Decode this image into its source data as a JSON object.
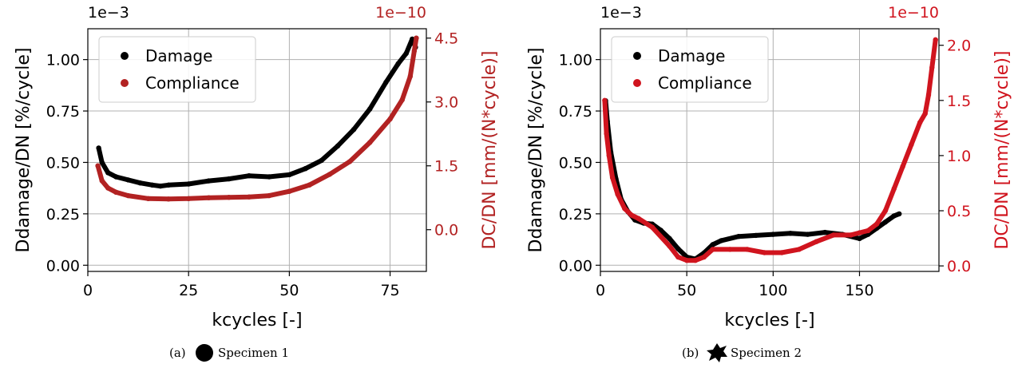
{
  "chart_data": [
    {
      "type": "line",
      "caption": {
        "prefix": "(a)",
        "label": "Specimen 1",
        "icon": "filled-circle-icon"
      },
      "xlabel": "kcycles [-]",
      "ylabel": "Ddamage/DN [%/cycle]",
      "y2label": "DC/DN [mm/(N*cycle)]",
      "xlim": [
        0,
        84
      ],
      "ylim": [
        -0.03,
        1.15
      ],
      "y2lim": [
        -0.98,
        4.72
      ],
      "x_ticks": [
        "0",
        "25",
        "50",
        "75"
      ],
      "x_tick_values": [
        0,
        25,
        50,
        75
      ],
      "y_ticks": [
        "0.00",
        "0.25",
        "0.50",
        "0.75",
        "1.00"
      ],
      "y_tick_values": [
        0,
        0.25,
        0.5,
        0.75,
        1.0
      ],
      "y2_ticks": [
        "0.0",
        "1.5",
        "3.0",
        "4.5"
      ],
      "y2_tick_values": [
        0,
        1.5,
        3.0,
        4.5
      ],
      "y_offset": "1e−3",
      "y2_offset": "1e−10",
      "grid": true,
      "legend": {
        "position": "top-left",
        "entries": [
          "Damage",
          "Compliance"
        ]
      },
      "series": [
        {
          "name": "Damage",
          "axis": "left",
          "color": "#000000",
          "x": [
            2.7,
            3.5,
            5,
            7,
            10,
            13,
            16,
            18,
            20,
            25,
            30,
            35,
            40,
            45,
            50,
            54,
            58,
            62,
            66,
            70,
            74,
            77,
            79,
            80.5,
            81.3
          ],
          "y": [
            0.57,
            0.5,
            0.45,
            0.43,
            0.415,
            0.4,
            0.39,
            0.385,
            0.39,
            0.395,
            0.41,
            0.42,
            0.435,
            0.43,
            0.44,
            0.47,
            0.51,
            0.58,
            0.66,
            0.76,
            0.89,
            0.98,
            1.03,
            1.1,
            1.06
          ]
        },
        {
          "name": "Compliance",
          "axis": "right",
          "color": "#b22222",
          "x": [
            2.5,
            3.5,
            5,
            7,
            10,
            15,
            20,
            25,
            30,
            35,
            40,
            45,
            50,
            55,
            60,
            65,
            70,
            75,
            78,
            80,
            81,
            81.5
          ],
          "y": [
            1.5,
            1.15,
            0.98,
            0.88,
            0.8,
            0.73,
            0.72,
            0.73,
            0.75,
            0.76,
            0.77,
            0.8,
            0.9,
            1.05,
            1.3,
            1.6,
            2.05,
            2.6,
            3.05,
            3.6,
            4.2,
            4.5
          ]
        }
      ]
    },
    {
      "type": "line",
      "caption": {
        "prefix": "(b)",
        "label": "Specimen 2",
        "icon": "irregular-blob-icon"
      },
      "xlabel": "kcycles [-]",
      "ylabel": "Ddamage/DN [%/cycle]",
      "y2label": "DC/DN [mm/(N*cycle)]",
      "xlim": [
        0,
        196
      ],
      "ylim": [
        -0.03,
        1.15
      ],
      "y2lim": [
        -0.05,
        2.15
      ],
      "x_ticks": [
        "0",
        "50",
        "100",
        "150"
      ],
      "x_tick_values": [
        0,
        50,
        100,
        150
      ],
      "y_ticks": [
        "0.00",
        "0.25",
        "0.50",
        "0.75",
        "1.00"
      ],
      "y_tick_values": [
        0,
        0.25,
        0.5,
        0.75,
        1.0
      ],
      "y2_ticks": [
        "0.0",
        "0.5",
        "1.0",
        "1.5",
        "2.0"
      ],
      "y2_tick_values": [
        0,
        0.5,
        1.0,
        1.5,
        2.0
      ],
      "y_offset": "1e−3",
      "y2_offset": "1e−10",
      "grid": true,
      "legend": {
        "position": "top-left",
        "entries": [
          "Damage",
          "Compliance"
        ]
      },
      "series": [
        {
          "name": "Damage",
          "axis": "left",
          "color": "#000000",
          "x": [
            3,
            4,
            6,
            9,
            12,
            16,
            20,
            25,
            30,
            35,
            40,
            45,
            50,
            55,
            60,
            65,
            70,
            80,
            90,
            100,
            110,
            120,
            130,
            140,
            150,
            155,
            160,
            165,
            170,
            173
          ],
          "y": [
            0.8,
            0.7,
            0.55,
            0.42,
            0.32,
            0.26,
            0.22,
            0.205,
            0.2,
            0.17,
            0.13,
            0.08,
            0.04,
            0.03,
            0.06,
            0.1,
            0.12,
            0.14,
            0.145,
            0.15,
            0.155,
            0.15,
            0.16,
            0.15,
            0.13,
            0.15,
            0.18,
            0.21,
            0.24,
            0.25
          ]
        },
        {
          "name": "Compliance",
          "axis": "right",
          "color": "#d0141e",
          "x": [
            2.5,
            3.5,
            5,
            7,
            10,
            14,
            18,
            22,
            30,
            40,
            45,
            50,
            55,
            60,
            65,
            75,
            85,
            95,
            105,
            115,
            125,
            135,
            145,
            150,
            155,
            160,
            165,
            170,
            175,
            180,
            185,
            188,
            190,
            192,
            194
          ],
          "y": [
            1.5,
            1.2,
            1.0,
            0.8,
            0.65,
            0.52,
            0.46,
            0.43,
            0.35,
            0.18,
            0.08,
            0.05,
            0.05,
            0.08,
            0.15,
            0.15,
            0.15,
            0.12,
            0.12,
            0.15,
            0.22,
            0.28,
            0.28,
            0.3,
            0.32,
            0.38,
            0.5,
            0.7,
            0.9,
            1.1,
            1.3,
            1.38,
            1.55,
            1.8,
            2.05
          ]
        }
      ]
    }
  ]
}
